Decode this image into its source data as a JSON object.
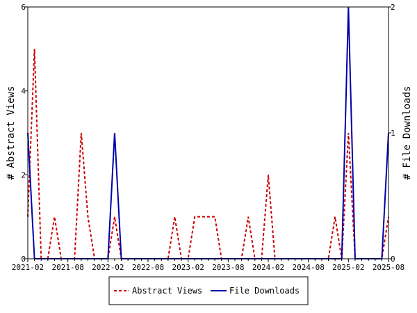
{
  "chart_data": {
    "type": "line",
    "x_tick_labels": [
      "2021-02",
      "2021-08",
      "2022-02",
      "2022-08",
      "2023-02",
      "2023-08",
      "2024-02",
      "2024-08",
      "2025-02",
      "2025-08"
    ],
    "x": [
      "2021-02",
      "2021-03",
      "2021-04",
      "2021-05",
      "2021-06",
      "2021-07",
      "2021-08",
      "2021-09",
      "2021-10",
      "2021-11",
      "2021-12",
      "2022-01",
      "2022-02",
      "2022-03",
      "2022-04",
      "2022-05",
      "2022-06",
      "2022-07",
      "2022-08",
      "2022-09",
      "2022-10",
      "2022-11",
      "2022-12",
      "2023-01",
      "2023-02",
      "2023-03",
      "2023-04",
      "2023-05",
      "2023-06",
      "2023-07",
      "2023-08",
      "2023-09",
      "2023-10",
      "2023-11",
      "2023-12",
      "2024-01",
      "2024-02",
      "2024-03",
      "2024-04",
      "2024-05",
      "2024-06",
      "2024-07",
      "2024-08",
      "2024-09",
      "2024-10",
      "2024-11",
      "2024-12",
      "2025-01",
      "2025-02",
      "2025-03",
      "2025-04",
      "2025-05",
      "2025-06",
      "2025-07",
      "2025-08"
    ],
    "series": [
      {
        "name": "Abstract Views",
        "axis": "left",
        "color": "#cc0000",
        "dash": true,
        "values": [
          1,
          5,
          0,
          0,
          1,
          0,
          0,
          0,
          3,
          1,
          0,
          0,
          0,
          1,
          0,
          0,
          0,
          0,
          0,
          0,
          0,
          0,
          1,
          0,
          0,
          1,
          1,
          1,
          1,
          0,
          0,
          0,
          0,
          1,
          0,
          0,
          2,
          0,
          0,
          0,
          0,
          0,
          0,
          0,
          0,
          0,
          1,
          0,
          3,
          0,
          0,
          0,
          0,
          0,
          1
        ]
      },
      {
        "name": "File Downloads",
        "axis": "right",
        "color": "#0000aa",
        "dash": false,
        "values": [
          1,
          0,
          0,
          0,
          0,
          0,
          0,
          0,
          0,
          0,
          0,
          0,
          0,
          1,
          0,
          0,
          0,
          0,
          0,
          0,
          0,
          0,
          0,
          0,
          0,
          0,
          0,
          0,
          0,
          0,
          0,
          0,
          0,
          0,
          0,
          0,
          0,
          0,
          0,
          0,
          0,
          0,
          0,
          0,
          0,
          0,
          0,
          0,
          2,
          0,
          0,
          0,
          0,
          0,
          1
        ]
      }
    ],
    "y_left": {
      "label": "# Abstract Views",
      "ylim": [
        0,
        6
      ],
      "ticks": [
        "0",
        "2",
        "4",
        "6"
      ]
    },
    "y_right": {
      "label": "# File Downloads",
      "ylim": [
        0,
        2
      ],
      "ticks": [
        "0",
        "1",
        "2"
      ]
    },
    "legend": {
      "position": "bottom-center"
    },
    "grid": false
  }
}
